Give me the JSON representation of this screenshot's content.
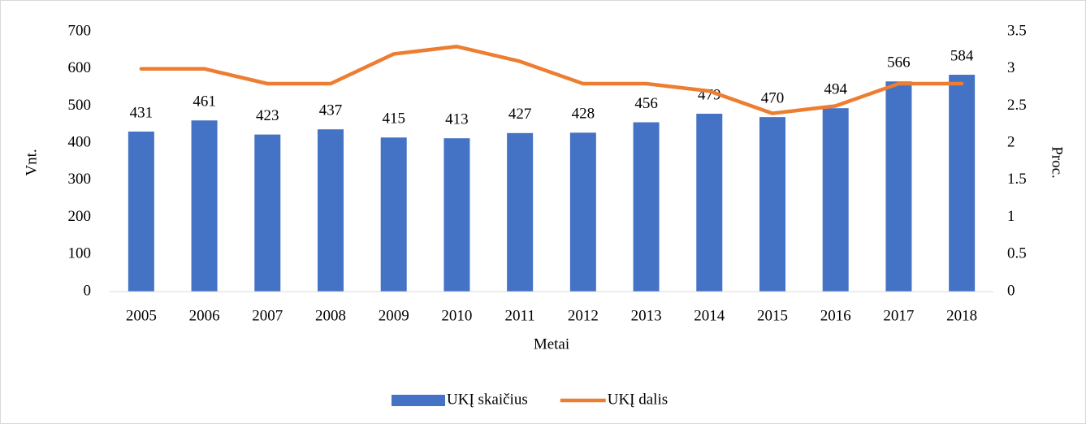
{
  "chart_data": {
    "type": "bar",
    "categories": [
      "2005",
      "2006",
      "2007",
      "2008",
      "2009",
      "2010",
      "2011",
      "2012",
      "2013",
      "2014",
      "2015",
      "2016",
      "2017",
      "2018"
    ],
    "series": [
      {
        "name": "UKĮ skaičius",
        "type": "bar",
        "color": "#4472c4",
        "values": [
          431,
          461,
          423,
          437,
          415,
          413,
          427,
          428,
          456,
          479,
          470,
          494,
          566,
          584
        ]
      },
      {
        "name": "UKĮ dalis",
        "type": "line",
        "axis": "y2",
        "color": "#ed7d31",
        "values": [
          3.0,
          3.0,
          2.8,
          2.8,
          3.2,
          3.3,
          3.1,
          2.8,
          2.8,
          2.7,
          2.4,
          2.5,
          2.8,
          2.8
        ]
      }
    ],
    "ylabel": "Vnt.",
    "y2label": "Proc.",
    "xlabel": "Metai",
    "ylim": [
      0,
      700
    ],
    "yticks": [
      0,
      100,
      200,
      300,
      400,
      500,
      600,
      700
    ],
    "y2lim": [
      0,
      3.5
    ],
    "y2ticks": [
      0,
      0.5,
      1,
      1.5,
      2,
      2.5,
      3,
      3.5
    ],
    "legend": "bottom",
    "grid": false
  }
}
